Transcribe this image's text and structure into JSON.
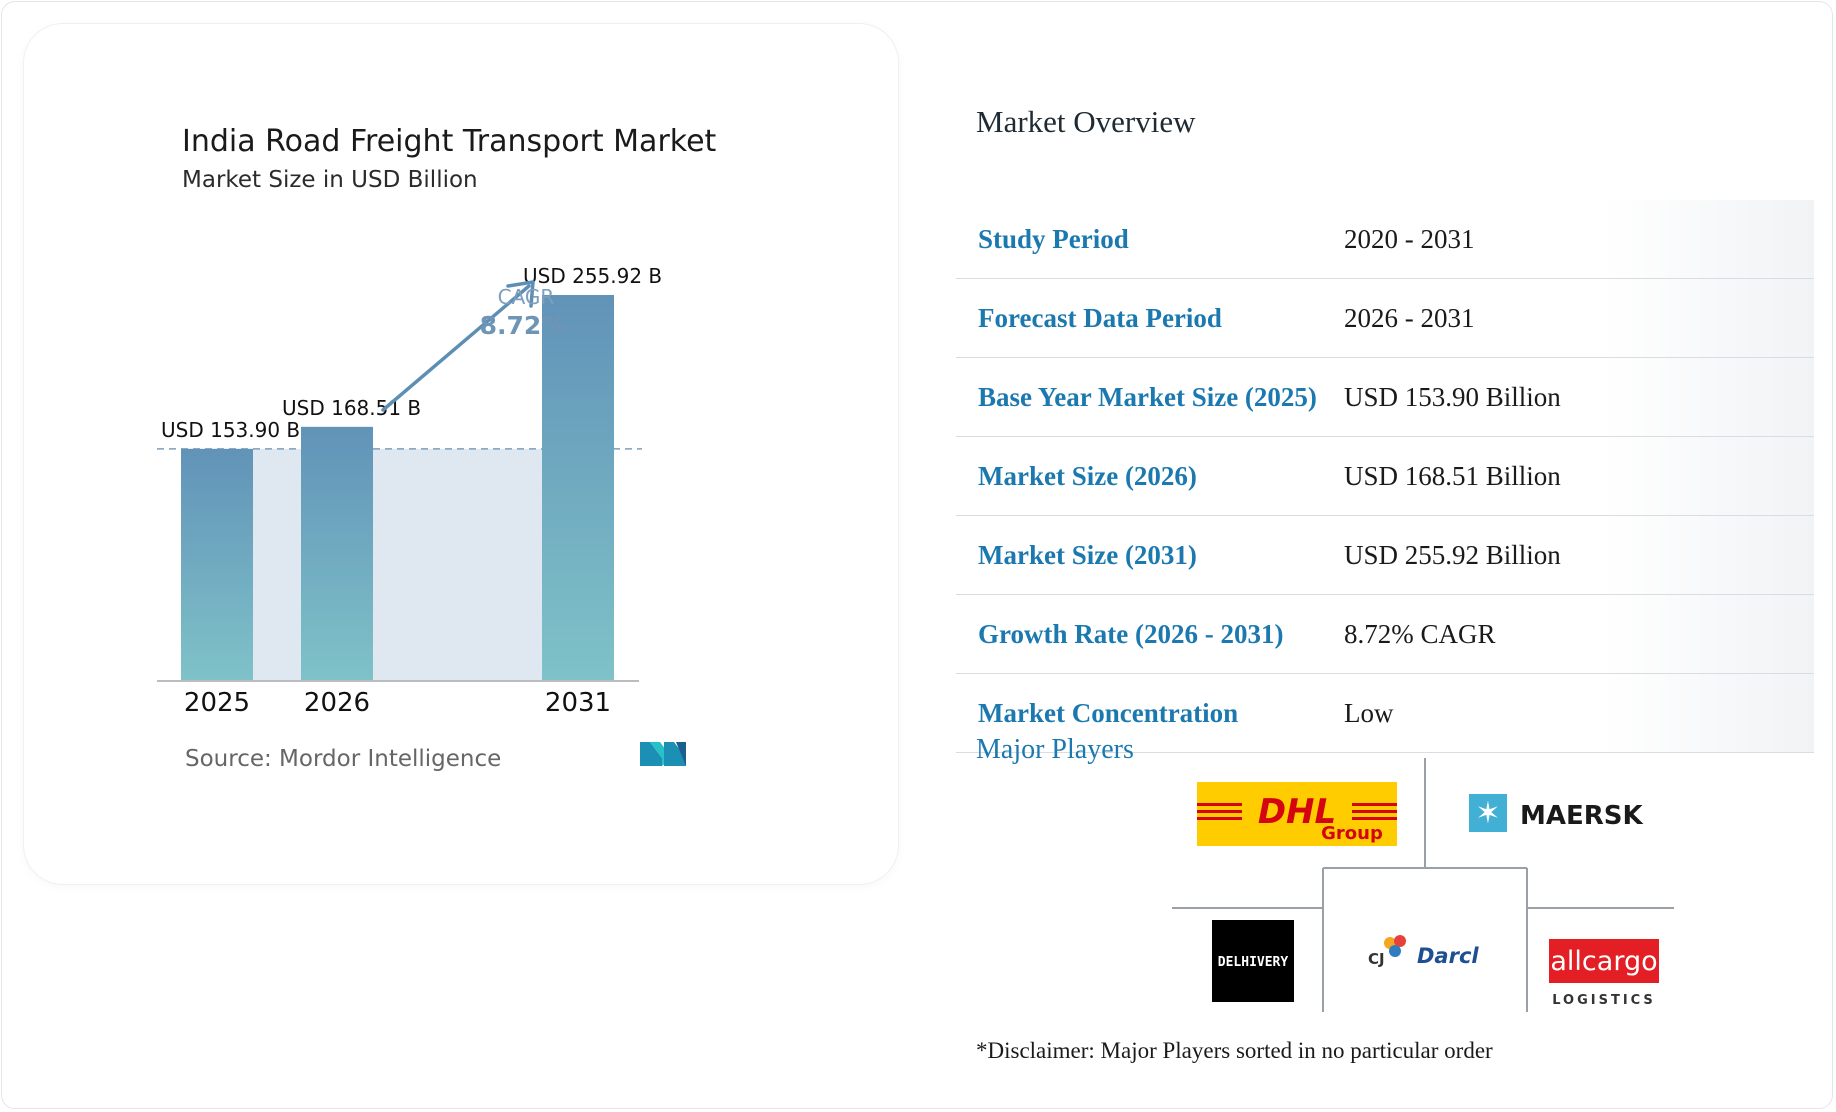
{
  "chart_data": {
    "type": "bar",
    "title": "India Road Freight Transport Market",
    "subtitle": "Market Size in USD Billion",
    "categories": [
      "2025",
      "2026",
      "2031"
    ],
    "values": [
      153.9,
      168.51,
      255.92
    ],
    "value_labels": [
      "USD 153.90 B",
      "USD 168.51 B",
      "USD 255.92 B"
    ],
    "xlabel": "",
    "ylabel": "",
    "ylim": [
      0,
      260
    ],
    "grid": false,
    "annotation": {
      "label": "CAGR",
      "value": "8.72%"
    },
    "source": "Source: Mordor Intelligence",
    "colors": {
      "bar_top": "#6193b8",
      "bar_bottom": "#7fc2c8",
      "band": "#dfe8f1",
      "arrow": "#5d8fb4",
      "baseline_dash": "#7f9fba"
    }
  },
  "overview": {
    "title": "Market Overview",
    "rows": [
      {
        "label": "Study Period",
        "value": "2020 - 2031"
      },
      {
        "label": "Forecast Data Period",
        "value": "2026 - 2031"
      },
      {
        "label": "Base Year Market Size (2025)",
        "value": "USD 153.90 Billion"
      },
      {
        "label": "Market Size (2026)",
        "value": "USD 168.51 Billion"
      },
      {
        "label": "Market Size (2031)",
        "value": "USD 255.92 Billion"
      },
      {
        "label": "Growth Rate (2026 - 2031)",
        "value": "8.72% CAGR"
      },
      {
        "label": "Market Concentration",
        "value": "Low"
      }
    ]
  },
  "players": {
    "title": "Major Players",
    "logos": [
      {
        "name": "DHL",
        "sub": "Group",
        "color": "#ffcc00",
        "text_color": "#d40511"
      },
      {
        "name": "MAERSK",
        "color": "#42b0d5",
        "text_color": "#1a1a1a"
      },
      {
        "name": "DELHIVERY",
        "color": "#000000",
        "text_color": "#ffffff"
      },
      {
        "name": "Darcl",
        "prefix": "CJ",
        "color": "#1d4f91",
        "text_color": "#1d4f91"
      },
      {
        "name": "allcargo",
        "sub": "LOGISTICS",
        "color": "#e31e24",
        "text_color": "#ffffff"
      }
    ],
    "disclaimer": "*Disclaimer: Major Players sorted in no particular order"
  }
}
